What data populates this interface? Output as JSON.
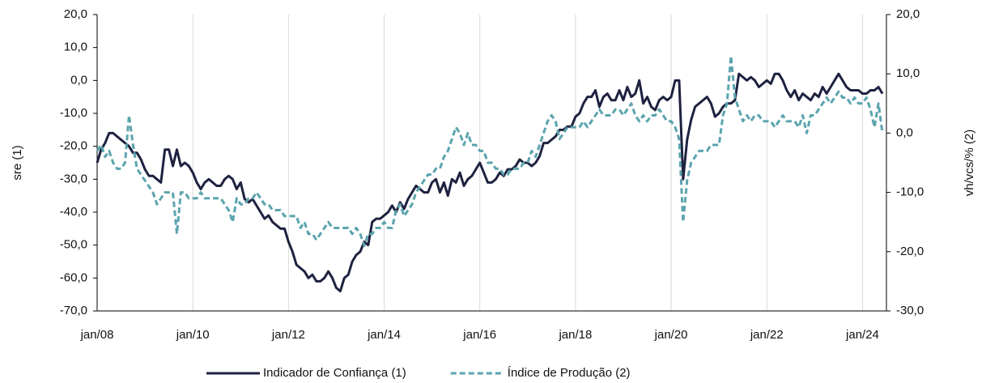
{
  "chart_data": {
    "type": "line",
    "y_label": "sre (1)",
    "y2_label": "vh/vcs/% (2)",
    "categories": [
      "jan/08",
      null,
      null,
      null,
      null,
      null,
      null,
      null,
      null,
      null,
      null,
      null,
      null,
      null,
      null,
      null,
      null,
      null,
      null,
      null,
      null,
      null,
      null,
      null,
      "jan/10",
      null,
      null,
      null,
      null,
      null,
      null,
      null,
      null,
      null,
      null,
      null,
      null,
      null,
      null,
      null,
      null,
      null,
      null,
      null,
      null,
      null,
      null,
      null,
      "jan/12",
      null,
      null,
      null,
      null,
      null,
      null,
      null,
      null,
      null,
      null,
      null,
      null,
      null,
      null,
      null,
      null,
      null,
      null,
      null,
      null,
      null,
      null,
      null,
      "jan/14",
      null,
      null,
      null,
      null,
      null,
      null,
      null,
      null,
      null,
      null,
      null,
      null,
      null,
      null,
      null,
      null,
      null,
      null,
      null,
      null,
      null,
      null,
      null,
      "jan/16",
      null,
      null,
      null,
      null,
      null,
      null,
      null,
      null,
      null,
      null,
      null,
      null,
      null,
      null,
      null,
      null,
      null,
      null,
      null,
      null,
      null,
      null,
      null,
      "jan/18",
      null,
      null,
      null,
      null,
      null,
      null,
      null,
      null,
      null,
      null,
      null,
      null,
      null,
      null,
      null,
      null,
      null,
      null,
      null,
      null,
      null,
      null,
      null,
      "jan/20",
      null,
      null,
      null,
      null,
      null,
      null,
      null,
      null,
      null,
      null,
      null,
      null,
      null,
      null,
      null,
      null,
      null,
      null,
      null,
      null,
      null,
      null,
      null,
      "jan/22",
      null,
      null,
      null,
      null,
      null,
      null,
      null,
      null,
      null,
      null,
      null,
      null,
      null,
      null,
      null,
      null,
      null,
      null,
      null,
      null,
      null,
      null,
      null,
      "jan/24",
      null,
      null,
      null,
      null,
      null
    ],
    "series": [
      {
        "name": "Indicador de Confiança (1)",
        "color": "#1e2240",
        "style": "solid",
        "axis": "y",
        "values": [
          -25,
          -21,
          -19,
          -16,
          -16,
          -17,
          -18,
          -19,
          -20,
          -22,
          -22,
          -24,
          -27,
          -29,
          -29,
          -30,
          -31,
          -21,
          -21,
          -26,
          -21,
          -26,
          -25,
          -26,
          -28,
          -31,
          -33,
          -31,
          -30,
          -31,
          -32,
          -32,
          -30,
          -29,
          -30,
          -33,
          -31,
          -36,
          -37,
          -36,
          -38,
          -40,
          -42,
          -41,
          -43,
          -44,
          -45,
          -45,
          -49,
          -52,
          -56,
          -57,
          -58,
          -60,
          -59,
          -61,
          -61,
          -60,
          -58,
          -60,
          -63,
          -64,
          -60,
          -59,
          -55,
          -53,
          -52,
          -49,
          -50,
          -43,
          -42,
          -42,
          -41,
          -40,
          -38,
          -40,
          -37,
          -39,
          -36,
          -34,
          -32,
          -33,
          -34,
          -34,
          -31,
          -30,
          -34,
          -31,
          -35,
          -30,
          -31,
          -28,
          -32,
          -30,
          -29,
          -27,
          -25,
          -28,
          -31,
          -31,
          -30,
          -28,
          -29,
          -27,
          -27,
          -26,
          -24,
          -25,
          -25,
          -26,
          -25,
          -23,
          -19,
          -19,
          -18,
          -17,
          -15,
          -15,
          -14,
          -14,
          -11,
          -10,
          -7,
          -5,
          -5,
          -3,
          -8,
          -5,
          -4,
          -6,
          -6,
          -3,
          -6,
          -2,
          -5,
          -4,
          0,
          -7,
          -5,
          -8,
          -9,
          -6,
          -5,
          -6,
          -5,
          0,
          0,
          -30,
          -18,
          -12,
          -8,
          -7,
          -6,
          -5,
          -7,
          -11,
          -10,
          -8,
          -7,
          -7,
          -6,
          2,
          1,
          0,
          1,
          0,
          -2,
          -1,
          0,
          -1,
          2,
          2,
          0,
          -3,
          -5,
          -3,
          -6,
          -4,
          -5,
          -6,
          -4,
          -5,
          -2,
          -4,
          -2,
          0,
          2,
          0,
          -2,
          -3,
          -3,
          -3,
          -4,
          -4,
          -3,
          -3,
          -2,
          -4
        ]
      },
      {
        "name": "Índice de Produção (2)",
        "color": "#5ba4ae",
        "style": "dashed",
        "axis": "y2",
        "values": [
          -3,
          -2,
          -4,
          -3,
          -5,
          -6,
          -6,
          -5,
          3,
          -2,
          -6,
          -7,
          -8,
          -9,
          -10,
          -12,
          -11,
          -10,
          -10,
          -10,
          -17,
          -10,
          -10,
          -11,
          -11,
          -11,
          -10,
          -11,
          -11,
          -11,
          -11,
          -11,
          -12,
          -13,
          -15,
          -11,
          -12,
          -12,
          -11,
          -11,
          -10,
          -11,
          -12,
          -12,
          -13,
          -13,
          -13,
          -14,
          -14,
          -14,
          -14,
          -16,
          -15,
          -17,
          -17,
          -18,
          -17,
          -16,
          -15,
          -16,
          -16,
          -16,
          -16,
          -16,
          -17,
          -16,
          -17,
          -19,
          -17,
          -17,
          -16,
          -16,
          -15,
          -16,
          -16,
          -13,
          -12,
          -14,
          -13,
          -12,
          -10,
          -9,
          -8,
          -7,
          -7,
          -6,
          -6,
          -4,
          -3,
          -1,
          1,
          0,
          -2,
          0,
          -2,
          -2,
          -3,
          -3,
          -5,
          -5,
          -6,
          -6,
          -7,
          -7,
          -6,
          -6,
          -6,
          -5,
          -5,
          -3,
          -4,
          -2,
          0,
          2,
          3,
          2,
          -1,
          0,
          1,
          1,
          1,
          1,
          2,
          1,
          2,
          3,
          4,
          3,
          3,
          3,
          4,
          4,
          3,
          4,
          5,
          3,
          2,
          3,
          2,
          3,
          3,
          4,
          3,
          2,
          2,
          1,
          -1,
          -15,
          -8,
          -5,
          -4,
          -3,
          -3,
          -3,
          -2,
          -2,
          -2,
          3,
          5,
          13,
          6,
          4,
          2,
          3,
          2,
          3,
          3,
          2,
          2,
          2,
          1,
          2,
          3,
          2,
          2,
          2,
          1,
          3,
          0,
          3,
          3,
          4,
          5,
          6,
          5,
          6,
          7,
          6,
          6,
          5,
          6,
          5,
          5,
          6,
          4,
          1,
          5,
          0
        ]
      }
    ],
    "ylim": [
      -70,
      20
    ],
    "yticks": [
      {
        "value": -70,
        "label": "-70,0"
      },
      {
        "value": -60,
        "label": "-60,0"
      },
      {
        "value": -50,
        "label": "-50,0"
      },
      {
        "value": -40,
        "label": "-40,0"
      },
      {
        "value": -30,
        "label": "-30,0"
      },
      {
        "value": -20,
        "label": "-20,0"
      },
      {
        "value": -10,
        "label": "-10,0"
      },
      {
        "value": 0,
        "label": "0,0"
      },
      {
        "value": 10,
        "label": "10,0"
      },
      {
        "value": 20,
        "label": "20,0"
      }
    ],
    "y2lim": [
      -30,
      20
    ],
    "y2ticks": [
      {
        "value": -30,
        "label": "-30,0"
      },
      {
        "value": -20,
        "label": "-20,0"
      },
      {
        "value": -10,
        "label": "-10,0"
      },
      {
        "value": 0,
        "label": "0,0"
      },
      {
        "value": 10,
        "label": "10,0"
      },
      {
        "value": 20,
        "label": "20,0"
      }
    ],
    "grid": true,
    "legend": "bottom"
  }
}
